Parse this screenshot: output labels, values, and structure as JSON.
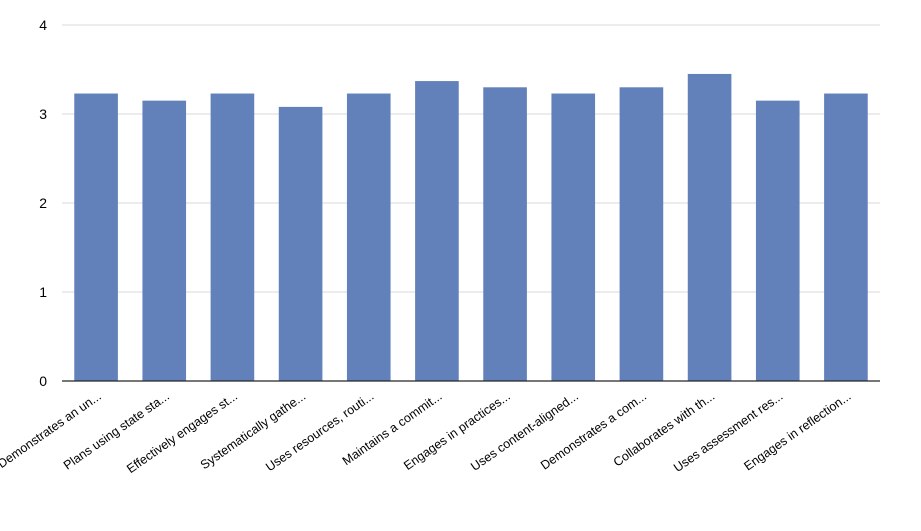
{
  "chart_data": {
    "type": "bar",
    "title": "",
    "xlabel": "",
    "ylabel": "",
    "ylim": [
      0,
      4
    ],
    "yticks": [
      0,
      1,
      2,
      3,
      4
    ],
    "grid": true,
    "bar_color": "#6281BA",
    "categories": [
      "Demonstrates an un...",
      "Plans using state sta...",
      "Effectively engages st...",
      "Systematically gathe...",
      "Uses resources, routi...",
      "Maintains a commit...",
      "Engages in practices...",
      "Uses content-aligned...",
      "Demonstrates a com...",
      "Collaborates with th...",
      "Uses assessment res...",
      "Engages in reflection..."
    ],
    "values": [
      3.23,
      3.15,
      3.23,
      3.08,
      3.23,
      3.37,
      3.3,
      3.23,
      3.3,
      3.45,
      3.15,
      3.23
    ]
  }
}
